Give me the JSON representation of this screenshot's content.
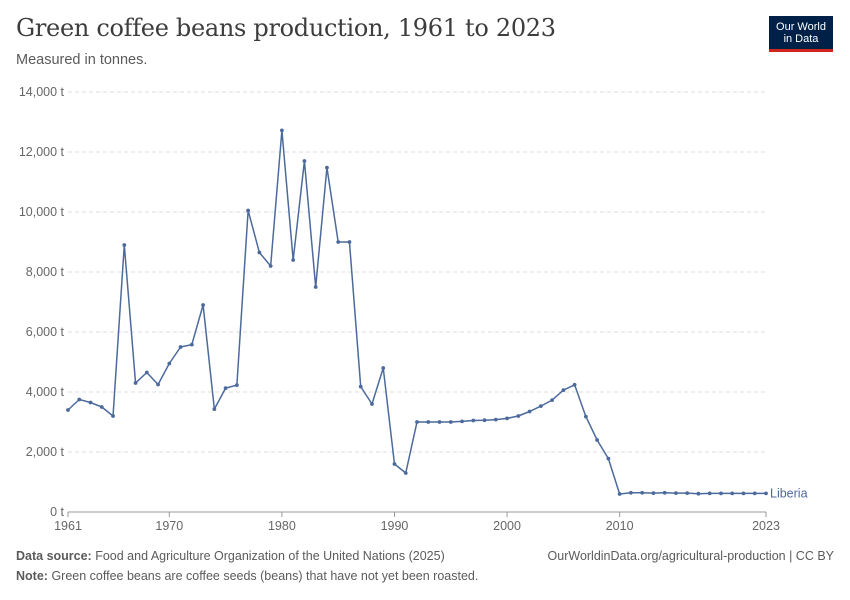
{
  "header": {
    "title": "Green coffee beans production, 1961 to 2023",
    "subtitle": "Measured in tonnes.",
    "logo_line1": "Our World",
    "logo_line2": "in Data"
  },
  "footer": {
    "source_label": "Data source:",
    "source_text": "Food and Agriculture Organization of the United Nations (2025)",
    "note_label": "Note:",
    "note_text": "Green coffee beans are coffee seeds (beans) that have not yet been roasted.",
    "url_text": "OurWorldinData.org/agricultural-production | CC BY"
  },
  "colors": {
    "series": "#4c6a9c",
    "grid": "#dddddd",
    "axis_text": "#666666",
    "logo_bg": "#002147",
    "logo_accent": "#ce261e"
  },
  "chart_data": {
    "type": "line",
    "title": "Green coffee beans production, 1961 to 2023",
    "subtitle": "Measured in tonnes.",
    "xlim": [
      1961,
      2023
    ],
    "ylim": [
      0,
      14000
    ],
    "x_ticks": [
      1961,
      1970,
      1980,
      1990,
      2000,
      2010,
      2023
    ],
    "y_ticks": [
      0,
      2000,
      4000,
      6000,
      8000,
      10000,
      12000,
      14000
    ],
    "y_tick_labels": [
      "0 t",
      "2,000 t",
      "4,000 t",
      "6,000 t",
      "8,000 t",
      "10,000 t",
      "12,000 t",
      "14,000 t"
    ],
    "grid": "horizontal dashed",
    "series": [
      {
        "name": "Liberia",
        "x": [
          1961,
          1962,
          1963,
          1964,
          1965,
          1966,
          1967,
          1968,
          1969,
          1970,
          1971,
          1972,
          1973,
          1974,
          1975,
          1976,
          1977,
          1978,
          1979,
          1980,
          1981,
          1982,
          1983,
          1984,
          1985,
          1986,
          1987,
          1988,
          1989,
          1990,
          1991,
          1992,
          1993,
          1994,
          1995,
          1996,
          1997,
          1998,
          1999,
          2000,
          2001,
          2002,
          2003,
          2004,
          2005,
          2006,
          2007,
          2008,
          2009,
          2010,
          2011,
          2012,
          2013,
          2014,
          2015,
          2016,
          2017,
          2018,
          2019,
          2020,
          2021,
          2022,
          2023
        ],
        "values": [
          3400,
          3750,
          3650,
          3500,
          3200,
          8900,
          4300,
          4650,
          4250,
          4950,
          5500,
          5580,
          6900,
          3430,
          4130,
          4230,
          10050,
          8650,
          8200,
          12720,
          8400,
          11700,
          7500,
          11480,
          9000,
          9000,
          4180,
          3600,
          4800,
          1600,
          1300,
          3000,
          3000,
          3000,
          3000,
          3020,
          3050,
          3060,
          3080,
          3120,
          3200,
          3350,
          3530,
          3730,
          4060,
          4240,
          3180,
          2400,
          1780,
          600,
          640,
          640,
          630,
          640,
          630,
          630,
          610,
          620,
          620,
          620,
          620,
          620,
          620
        ]
      }
    ]
  }
}
